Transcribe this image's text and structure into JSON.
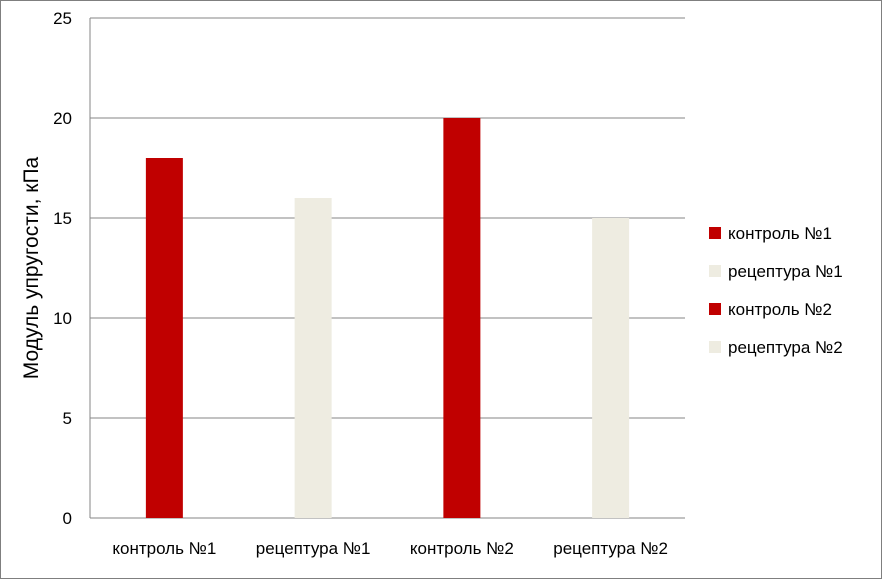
{
  "chart_data": {
    "type": "bar",
    "categories": [
      "контроль №1",
      "рецептура №1",
      "контроль №2",
      "рецептура №2"
    ],
    "series": [
      {
        "name": "контроль №1",
        "values": [
          18,
          null,
          null,
          null
        ],
        "color": "#c00000"
      },
      {
        "name": "рецептура №1",
        "values": [
          null,
          16,
          null,
          null
        ],
        "color": "#eeece1"
      },
      {
        "name": "контроль №2",
        "values": [
          null,
          null,
          20,
          null
        ],
        "color": "#c00000"
      },
      {
        "name": "рецептура №2",
        "values": [
          null,
          null,
          null,
          15
        ],
        "color": "#eeece1"
      }
    ],
    "values": [
      18,
      16,
      20,
      15
    ],
    "bar_colors": [
      "#c00000",
      "#eeece1",
      "#c00000",
      "#eeece1"
    ],
    "title": "",
    "xlabel": "",
    "ylabel": "Модуль упругости, кПа",
    "ylim": [
      0,
      25
    ],
    "yticks": [
      0,
      5,
      10,
      15,
      20,
      25
    ],
    "grid": true,
    "legend_position": "right",
    "legend": [
      {
        "label": "контроль №1",
        "color": "#c00000"
      },
      {
        "label": "рецептура №1",
        "color": "#eeece1"
      },
      {
        "label": "контроль №2",
        "color": "#c00000"
      },
      {
        "label": "рецептура №2",
        "color": "#eeece1"
      }
    ]
  }
}
